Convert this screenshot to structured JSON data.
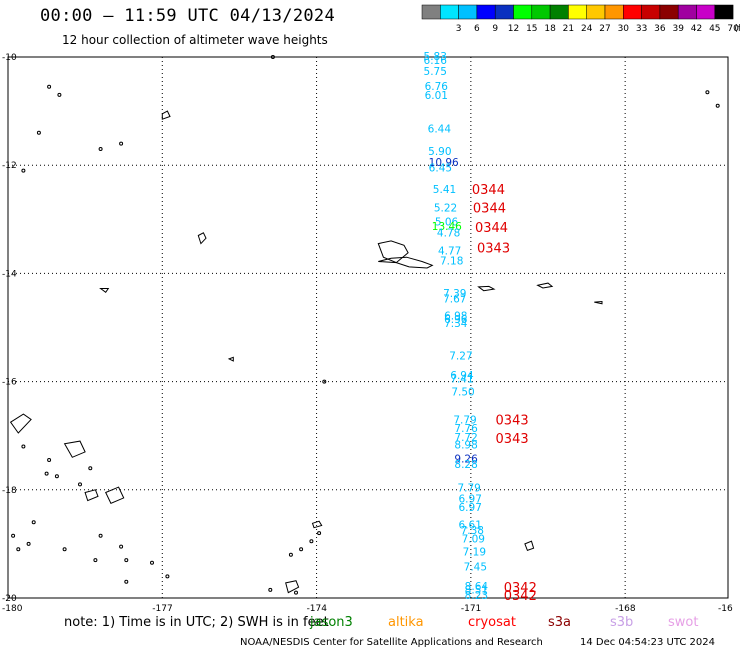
{
  "header": {
    "title": "00:00 – 11:59 UTC 04/13/2024",
    "subtitle": "12 hour collection of altimeter wave heights"
  },
  "legend": {
    "unit": "(ft)",
    "entries": [
      {
        "label": "",
        "color": "#808080"
      },
      {
        "label": "3",
        "color": "#00e5ff"
      },
      {
        "label": "6",
        "color": "#00c0ff"
      },
      {
        "label": "9",
        "color": "#0000ff"
      },
      {
        "label": "12",
        "color": "#0a30c0"
      },
      {
        "label": "15",
        "color": "#00ff00"
      },
      {
        "label": "18",
        "color": "#00c800"
      },
      {
        "label": "21",
        "color": "#008000"
      },
      {
        "label": "24",
        "color": "#ffff00"
      },
      {
        "label": "27",
        "color": "#ffc800"
      },
      {
        "label": "30",
        "color": "#ff9600"
      },
      {
        "label": "33",
        "color": "#ff0000"
      },
      {
        "label": "36",
        "color": "#c80000"
      },
      {
        "label": "39",
        "color": "#8b0000"
      },
      {
        "label": "42",
        "color": "#a000a0"
      },
      {
        "label": "45",
        "color": "#c800c8"
      },
      {
        "label": "70",
        "color": "#000000"
      }
    ]
  },
  "axes": {
    "lat_labels": [
      "-10",
      "-12",
      "-14",
      "-16",
      "-18",
      "-20"
    ],
    "lon_labels": [
      "-180",
      "-177",
      "-174",
      "-171",
      "-168",
      "-16"
    ]
  },
  "observations": [
    {
      "v": "5.83",
      "lat": -9.98,
      "lon": -171.92,
      "c": "#00c0ff"
    },
    {
      "v": "6.16",
      "lat": -10.06,
      "lon": -171.92,
      "c": "#00c0ff"
    },
    {
      "v": "5.75",
      "lat": -10.26,
      "lon": -171.92,
      "c": "#00c0ff"
    },
    {
      "v": "6.76",
      "lat": -10.54,
      "lon": -171.9,
      "c": "#00c0ff"
    },
    {
      "v": "6.01",
      "lat": -10.7,
      "lon": -171.9,
      "c": "#00c0ff"
    },
    {
      "v": "6.44",
      "lat": -11.32,
      "lon": -171.84,
      "c": "#00c0ff"
    },
    {
      "v": "5.90",
      "lat": -11.74,
      "lon": -171.83,
      "c": "#00c0ff"
    },
    {
      "v": "10.96",
      "lat": -11.94,
      "lon": -171.82,
      "c": "#0a30c0"
    },
    {
      "v": "6.45",
      "lat": -12.04,
      "lon": -171.82,
      "c": "#00c0ff"
    },
    {
      "v": "5.41",
      "lat": -12.44,
      "lon": -171.74,
      "c": "#00c0ff"
    },
    {
      "v": "5.22",
      "lat": -12.78,
      "lon": -171.72,
      "c": "#00c0ff"
    },
    {
      "v": "5.06",
      "lat": -13.04,
      "lon": -171.7,
      "c": "#00c0ff"
    },
    {
      "v": "13.46",
      "lat": -13.12,
      "lon": -171.76,
      "c": "#00ff00"
    },
    {
      "v": "4.78",
      "lat": -13.24,
      "lon": -171.66,
      "c": "#00c0ff"
    },
    {
      "v": "4.77",
      "lat": -13.58,
      "lon": -171.64,
      "c": "#00c0ff"
    },
    {
      "v": "7.18",
      "lat": -13.76,
      "lon": -171.6,
      "c": "#00c0ff"
    },
    {
      "v": "7.39",
      "lat": -14.36,
      "lon": -171.54,
      "c": "#00c0ff"
    },
    {
      "v": "7.67",
      "lat": -14.46,
      "lon": -171.54,
      "c": "#00c0ff"
    },
    {
      "v": "6.98",
      "lat": -14.78,
      "lon": -171.52,
      "c": "#00c0ff"
    },
    {
      "v": "6.96",
      "lat": -14.84,
      "lon": -171.52,
      "c": "#00c0ff"
    },
    {
      "v": "7.34",
      "lat": -14.92,
      "lon": -171.52,
      "c": "#00c0ff"
    },
    {
      "v": "7.27",
      "lat": -15.52,
      "lon": -171.42,
      "c": "#00c0ff"
    },
    {
      "v": "6.94",
      "lat": -15.88,
      "lon": -171.4,
      "c": "#00c0ff"
    },
    {
      "v": "7.41",
      "lat": -15.94,
      "lon": -171.4,
      "c": "#00c0ff"
    },
    {
      "v": "7.50",
      "lat": -16.18,
      "lon": -171.38,
      "c": "#00c0ff"
    },
    {
      "v": "7.79",
      "lat": -16.7,
      "lon": -171.34,
      "c": "#00c0ff"
    },
    {
      "v": "7.76",
      "lat": -16.86,
      "lon": -171.32,
      "c": "#00c0ff"
    },
    {
      "v": "7.72",
      "lat": -17.02,
      "lon": -171.32,
      "c": "#00c0ff"
    },
    {
      "v": "8.98",
      "lat": -17.16,
      "lon": -171.32,
      "c": "#00c0ff"
    },
    {
      "v": "9.26",
      "lat": -17.42,
      "lon": -171.32,
      "c": "#0a30c0"
    },
    {
      "v": "8.28",
      "lat": -17.52,
      "lon": -171.32,
      "c": "#00c0ff"
    },
    {
      "v": "7.79",
      "lat": -17.96,
      "lon": -171.26,
      "c": "#00c0ff"
    },
    {
      "v": "6.97",
      "lat": -18.16,
      "lon": -171.24,
      "c": "#00c0ff"
    },
    {
      "v": "6.97",
      "lat": -18.32,
      "lon": -171.24,
      "c": "#00c0ff"
    },
    {
      "v": "6.61",
      "lat": -18.64,
      "lon": -171.24,
      "c": "#00c0ff"
    },
    {
      "v": "7.38",
      "lat": -18.74,
      "lon": -171.2,
      "c": "#00c0ff"
    },
    {
      "v": "7.09",
      "lat": -18.9,
      "lon": -171.18,
      "c": "#00c0ff"
    },
    {
      "v": "7.19",
      "lat": -19.14,
      "lon": -171.16,
      "c": "#00c0ff"
    },
    {
      "v": "7.45",
      "lat": -19.42,
      "lon": -171.14,
      "c": "#00c0ff"
    },
    {
      "v": "8.64",
      "lat": -19.78,
      "lon": -171.12,
      "c": "#00c0ff"
    },
    {
      "v": "8.51",
      "lat": -19.84,
      "lon": -171.12,
      "c": "#00c0ff"
    },
    {
      "v": "8.23",
      "lat": -19.94,
      "lon": -171.12,
      "c": "#00c0ff"
    }
  ],
  "time_labels": [
    {
      "v": "0344",
      "lat": -12.44,
      "lon": -170.98
    },
    {
      "v": "0344",
      "lat": -12.78,
      "lon": -170.96
    },
    {
      "v": "0344",
      "lat": -13.14,
      "lon": -170.92
    },
    {
      "v": "0343",
      "lat": -13.52,
      "lon": -170.88
    },
    {
      "v": "0343",
      "lat": -16.7,
      "lon": -170.52
    },
    {
      "v": "0343",
      "lat": -17.04,
      "lon": -170.52
    },
    {
      "v": "0342",
      "lat": -19.8,
      "lon": -170.36
    },
    {
      "v": "0342",
      "lat": -19.94,
      "lon": -170.36
    }
  ],
  "footer": {
    "note": "note: 1) Time is in UTC; 2) SWH is in feet",
    "sats": [
      {
        "name": "jason3",
        "color": "#008000"
      },
      {
        "name": "altika",
        "color": "#ff9600"
      },
      {
        "name": "cryosat",
        "color": "#ff0000"
      },
      {
        "name": "s3a",
        "color": "#8b0000"
      },
      {
        "name": "s3b",
        "color": "#c8a0e6"
      },
      {
        "name": "swot",
        "color": "#e6a0e6"
      }
    ],
    "credit": "NOAA/NESDIS Center for Satellite Applications and Research",
    "timestamp": "14 Dec 04:54:23 UTC 2024"
  }
}
